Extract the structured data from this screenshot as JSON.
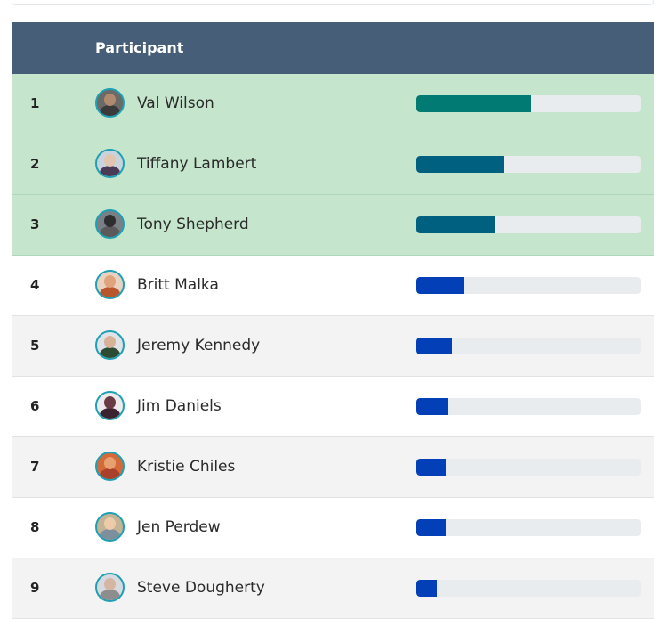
{
  "header": {
    "participant_label": "Participant"
  },
  "rows": [
    {
      "rank": "1",
      "name": "Val Wilson",
      "progress": 0.51,
      "bar_color": "#007a73",
      "bg": "top",
      "avatar": {
        "bg": "#6b6a66",
        "skin": "#b08a6e",
        "shirt": "#3a3a3a"
      }
    },
    {
      "rank": "2",
      "name": "Tiffany Lambert",
      "progress": 0.39,
      "bar_color": "#00607f",
      "bg": "top",
      "avatar": {
        "bg": "#c9d3dc",
        "skin": "#e3c4ae",
        "shirt": "#4a3a56"
      }
    },
    {
      "rank": "3",
      "name": "Tony Shepherd",
      "progress": 0.35,
      "bar_color": "#00607f",
      "bg": "top",
      "avatar": {
        "bg": "#7a7f86",
        "skin": "#2e2e2e",
        "shirt": "#5a5a5a"
      }
    },
    {
      "rank": "4",
      "name": "Britt Malka",
      "progress": 0.21,
      "bar_color": "#033fb7",
      "bg": "odd",
      "avatar": {
        "bg": "#e9d2c0",
        "skin": "#e0a37c",
        "shirt": "#b8562c"
      }
    },
    {
      "rank": "5",
      "name": "Jeremy Kennedy",
      "progress": 0.16,
      "bar_color": "#033fb7",
      "bg": "even",
      "avatar": {
        "bg": "#dfe3e8",
        "skin": "#d9b196",
        "shirt": "#2d4a32"
      }
    },
    {
      "rank": "6",
      "name": "Jim Daniels",
      "progress": 0.14,
      "bar_color": "#033fb7",
      "bg": "odd",
      "avatar": {
        "bg": "#eceaea",
        "skin": "#6a3b44",
        "shirt": "#3b2430"
      }
    },
    {
      "rank": "7",
      "name": "Kristie Chiles",
      "progress": 0.13,
      "bar_color": "#033fb7",
      "bg": "even",
      "avatar": {
        "bg": "#d46a3a",
        "skin": "#e7a070",
        "shirt": "#a8402c"
      }
    },
    {
      "rank": "8",
      "name": "Jen Perdew",
      "progress": 0.13,
      "bar_color": "#033fb7",
      "bg": "odd",
      "avatar": {
        "bg": "#c4b496",
        "skin": "#edcba9",
        "shirt": "#7d8f9c"
      }
    },
    {
      "rank": "9",
      "name": "Steve Dougherty",
      "progress": 0.09,
      "bar_color": "#033fb7",
      "bg": "even",
      "avatar": {
        "bg": "#d6dade",
        "skin": "#d4b6a2",
        "shirt": "#8d8d8d"
      }
    }
  ]
}
